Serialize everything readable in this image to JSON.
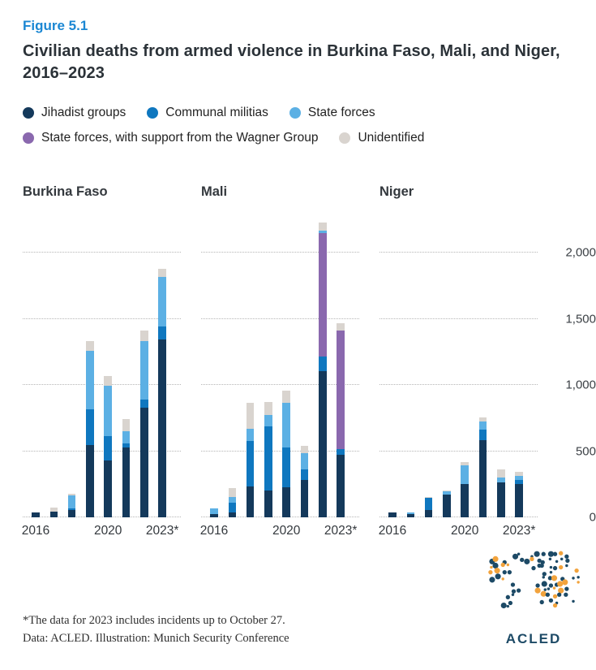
{
  "figure_label": "Figure 5.1",
  "title": "Civilian deaths from armed violence in Burkina Faso, Mali, and Niger, 2016–2023",
  "legend": [
    {
      "key": "jihadist",
      "label": "Jihadist groups",
      "color": "#14395b"
    },
    {
      "key": "communal",
      "label": "Communal militias",
      "color": "#0f77bf"
    },
    {
      "key": "state",
      "label": "State forces",
      "color": "#5cb0e4"
    },
    {
      "key": "wagner",
      "label": "State forces, with support from the Wagner Group",
      "color": "#8a68ae"
    },
    {
      "key": "unidentified",
      "label": "Unidentified",
      "color": "#d9d4cf"
    }
  ],
  "chart_data": {
    "type": "bar",
    "stacked": true,
    "categories": [
      2016,
      2017,
      2018,
      2019,
      2020,
      2021,
      2022,
      2023
    ],
    "x_tick_labels": [
      {
        "label": "2016",
        "year_index": 0
      },
      {
        "label": "2020",
        "year_index": 4
      },
      {
        "label": "2023*",
        "year_index": 7
      }
    ],
    "ylim": [
      0,
      2250
    ],
    "y_ticks": [
      0,
      500,
      1000,
      1500,
      2000
    ],
    "y_tick_labels": [
      "0",
      "500",
      "1,000",
      "1,500",
      "2,000"
    ],
    "grid": "dotted-horizontal",
    "legend_position": "top",
    "stack_order": [
      "jihadist",
      "communal",
      "wagner",
      "state",
      "unidentified"
    ],
    "panels": [
      {
        "title": "Burkina Faso",
        "series": [
          {
            "key": "jihadist",
            "name": "Jihadist groups",
            "values": [
              40,
              45,
              55,
              545,
              430,
              530,
              830,
              1345
            ]
          },
          {
            "key": "communal",
            "name": "Communal militias",
            "values": [
              0,
              0,
              15,
              270,
              185,
              30,
              60,
              100
            ]
          },
          {
            "key": "wagner",
            "name": "State forces, with support from the Wagner Group",
            "values": [
              0,
              0,
              0,
              0,
              0,
              0,
              0,
              0
            ]
          },
          {
            "key": "state",
            "name": "State forces",
            "values": [
              0,
              0,
              95,
              445,
              380,
              90,
              440,
              370
            ]
          },
          {
            "key": "unidentified",
            "name": "Unidentified",
            "values": [
              0,
              30,
              15,
              75,
              70,
              95,
              80,
              60
            ]
          }
        ]
      },
      {
        "title": "Mali",
        "series": [
          {
            "key": "jihadist",
            "name": "Jihadist groups",
            "values": [
              25,
              35,
              235,
              205,
              225,
              280,
              1105,
              470
            ]
          },
          {
            "key": "communal",
            "name": "Communal militias",
            "values": [
              0,
              75,
              340,
              485,
              300,
              80,
              110,
              45
            ]
          },
          {
            "key": "wagner",
            "name": "State forces, with support from the Wagner Group",
            "values": [
              0,
              0,
              0,
              0,
              0,
              0,
              935,
              895
            ]
          },
          {
            "key": "state",
            "name": "State forces",
            "values": [
              40,
              45,
              95,
              85,
              340,
              125,
              15,
              0
            ]
          },
          {
            "key": "unidentified",
            "name": "Unidentified",
            "values": [
              0,
              65,
              195,
              95,
              90,
              55,
              65,
              55
            ]
          }
        ]
      },
      {
        "title": "Niger",
        "series": [
          {
            "key": "jihadist",
            "name": "Jihadist groups",
            "values": [
              35,
              25,
              55,
              170,
              250,
              585,
              265,
              250
            ]
          },
          {
            "key": "communal",
            "name": "Communal militias",
            "values": [
              0,
              0,
              90,
              0,
              0,
              80,
              0,
              35
            ]
          },
          {
            "key": "wagner",
            "name": "State forces, with support from the Wagner Group",
            "values": [
              0,
              0,
              0,
              0,
              0,
              0,
              0,
              0
            ]
          },
          {
            "key": "state",
            "name": "State forces",
            "values": [
              0,
              15,
              0,
              25,
              145,
              60,
              35,
              25
            ]
          },
          {
            "key": "unidentified",
            "name": "Unidentified",
            "values": [
              0,
              0,
              10,
              10,
              20,
              30,
              60,
              35
            ]
          }
        ]
      }
    ]
  },
  "footnotes": [
    "*The data for 2023 includes incidents up to October 27.",
    "Data: ACLED. Illustration: Munich Security Conference"
  ],
  "logo": {
    "text": "ACLED",
    "navy": "#1d4a66",
    "orange": "#f2a33c"
  },
  "colors": {
    "figure_label": "#1b87d3",
    "title": "#2b3238",
    "gridline": "#b5b5b5"
  }
}
